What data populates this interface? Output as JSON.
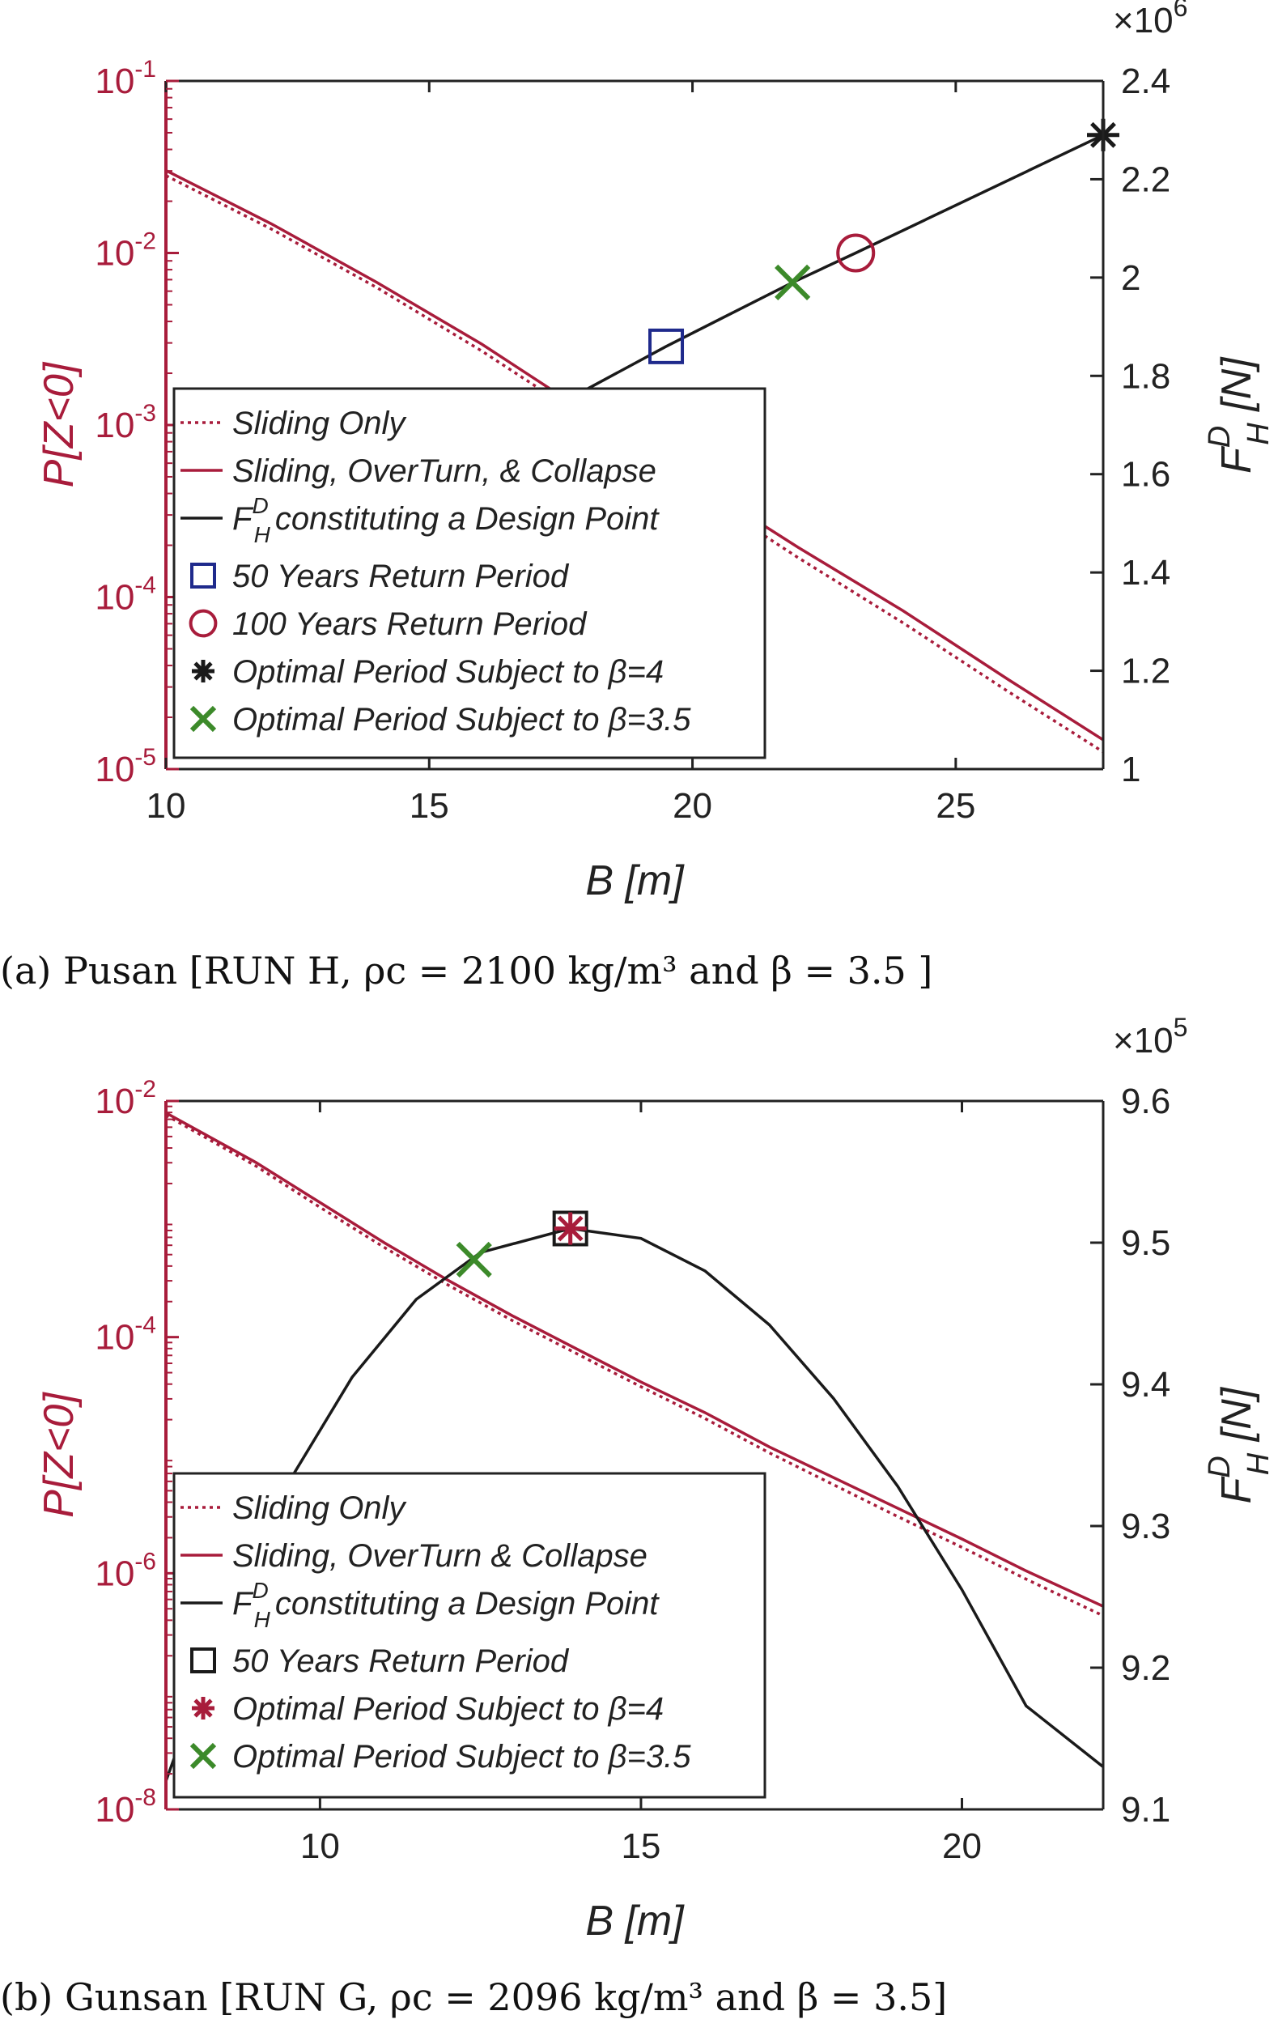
{
  "colors": {
    "red": "#a81c3b",
    "black": "#1a1a1a",
    "blue": "#1f2a8c",
    "green": "#3c8a2a"
  },
  "chart_data": [
    {
      "type": "line",
      "caption": "(a) Pusan [RUN H, ρc = 2100 kg/m³ and β = 3.5 ]",
      "xlabel": "B [m]",
      "ylabel_left": "P[Z<0]",
      "ylabel_right": "F_H^D [N]",
      "right_multiplier": "×10^6",
      "xlim": [
        10,
        27.8
      ],
      "x_ticks": [
        "10",
        "15",
        "20",
        "25"
      ],
      "x_tick_values": [
        10,
        15,
        20,
        25
      ],
      "ylim_left_log10": [
        -5,
        -1
      ],
      "y_ticks_left": [
        {
          "base": "10",
          "exp": "-1"
        },
        {
          "base": "10",
          "exp": "-2"
        },
        {
          "base": "10",
          "exp": "-3"
        },
        {
          "base": "10",
          "exp": "-4"
        },
        {
          "base": "10",
          "exp": "-5"
        }
      ],
      "y_tick_left_exponents": [
        -1,
        -2,
        -3,
        -4,
        -5
      ],
      "ylim_right": [
        1.0,
        2.4
      ],
      "y_ticks_right": [
        "2.4",
        "2.2",
        "2",
        "1.8",
        "1.6",
        "1.4",
        "1.2",
        "1"
      ],
      "y_tick_right_values": [
        2.4,
        2.2,
        2.0,
        1.8,
        1.6,
        1.4,
        1.2,
        1.0
      ],
      "series": [
        {
          "name": "Sliding Only",
          "axis": "left",
          "style": "dotted",
          "color": "#a81c3b",
          "x": [
            10,
            12,
            14,
            16,
            18,
            20,
            22,
            24,
            26,
            27.8
          ],
          "log10_y": [
            -1.55,
            -1.86,
            -2.2,
            -2.57,
            -2.97,
            -3.37,
            -3.77,
            -4.15,
            -4.55,
            -4.9
          ]
        },
        {
          "name": "Sliding, OverTurn, & Collapse",
          "axis": "left",
          "style": "solid",
          "color": "#a81c3b",
          "x": [
            10,
            12,
            14,
            16,
            18,
            20,
            22,
            24,
            26,
            27.8
          ],
          "log10_y": [
            -1.52,
            -1.83,
            -2.17,
            -2.53,
            -2.93,
            -3.32,
            -3.71,
            -4.08,
            -4.48,
            -4.83
          ]
        },
        {
          "name": "constituting a Design Point",
          "axis": "right",
          "style": "solid",
          "color": "#1a1a1a",
          "x": [
            17.6,
            19.5,
            21.9,
            23.1,
            27.8
          ],
          "y": [
            1.75,
            1.86,
            1.99,
            2.05,
            2.29
          ]
        }
      ],
      "markers": [
        {
          "name": "50 Years Return Period",
          "symbol": "square",
          "color": "#1f2a8c",
          "x": 19.5,
          "y": 1.86
        },
        {
          "name": "100 Years Return Period",
          "symbol": "circle",
          "color": "#a81c3b",
          "x": 23.1,
          "y": 2.05
        },
        {
          "name": "Optimal Period Subject to β=4",
          "symbol": "asterisk",
          "color": "#1a1a1a",
          "x": 27.8,
          "y": 2.29
        },
        {
          "name": "Optimal Period Subject to β=3.5",
          "symbol": "cross",
          "color": "#3c8a2a",
          "x": 21.9,
          "y": 1.99
        }
      ],
      "legend": {
        "placement": "bottom-left",
        "entries": [
          {
            "symbol": "dotted",
            "color": "#a81c3b",
            "label": "Sliding Only"
          },
          {
            "symbol": "solid",
            "color": "#a81c3b",
            "label": "Sliding, OverTurn, & Collapse"
          },
          {
            "symbol": "solid",
            "color": "#1a1a1a",
            "label": "constituting a Design Point",
            "math_prefix": true
          },
          {
            "symbol": "square",
            "color": "#1f2a8c",
            "label": "50 Years Return Period"
          },
          {
            "symbol": "circle",
            "color": "#a81c3b",
            "label": "100 Years Return Period"
          },
          {
            "symbol": "asterisk",
            "color": "#1a1a1a",
            "label": "Optimal Period Subject to β=4"
          },
          {
            "symbol": "cross",
            "color": "#3c8a2a",
            "label": "Optimal Period Subject to β=3.5"
          }
        ]
      }
    },
    {
      "type": "line",
      "caption": "(b) Gunsan [RUN G, ρc = 2096 kg/m³ and β = 3.5]",
      "xlabel": "B [m]",
      "ylabel_left": "P[Z<0]",
      "ylabel_right": "F_H^D [N]",
      "right_multiplier": "×10^5",
      "xlim": [
        7.6,
        22.2
      ],
      "x_ticks": [
        "10",
        "15",
        "20"
      ],
      "x_tick_values": [
        10,
        15,
        20
      ],
      "ylim_left_log10": [
        -8,
        -2
      ],
      "y_ticks_left": [
        {
          "base": "10",
          "exp": "-2"
        },
        {
          "base": "10",
          "exp": "-4"
        },
        {
          "base": "10",
          "exp": "-6"
        },
        {
          "base": "10",
          "exp": "-8"
        }
      ],
      "y_tick_left_exponents": [
        -2,
        -4,
        -6,
        -8
      ],
      "ylim_right": [
        9.1,
        9.6
      ],
      "y_ticks_right": [
        "9.6",
        "9.5",
        "9.4",
        "9.3",
        "9.2",
        "9.1"
      ],
      "y_tick_right_values": [
        9.6,
        9.5,
        9.4,
        9.3,
        9.2,
        9.1
      ],
      "series": [
        {
          "name": "Sliding Only",
          "axis": "left",
          "style": "dotted",
          "color": "#a81c3b",
          "x": [
            7.6,
            9,
            10,
            11,
            12,
            13,
            14,
            15,
            16,
            17,
            18,
            19,
            20,
            21,
            22.2
          ],
          "log10_y": [
            -2.12,
            -2.55,
            -2.9,
            -3.24,
            -3.56,
            -3.86,
            -4.14,
            -4.42,
            -4.69,
            -4.98,
            -5.25,
            -5.52,
            -5.78,
            -6.05,
            -6.36
          ]
        },
        {
          "name": "Sliding, OverTurn & Collapse",
          "axis": "left",
          "style": "solid",
          "color": "#a81c3b",
          "x": [
            7.6,
            9,
            10,
            11,
            12,
            13,
            14,
            15,
            16,
            17,
            18,
            19,
            20,
            21,
            22.2
          ],
          "log10_y": [
            -2.1,
            -2.52,
            -2.86,
            -3.2,
            -3.52,
            -3.82,
            -4.1,
            -4.38,
            -4.64,
            -4.93,
            -5.19,
            -5.45,
            -5.71,
            -5.98,
            -6.28
          ]
        },
        {
          "name": "constituting a Design Point",
          "axis": "right",
          "style": "solid",
          "color": "#1a1a1a",
          "x": [
            7.6,
            8.5,
            9.5,
            10.5,
            11.5,
            12.5,
            13.9,
            15,
            16,
            17,
            18,
            19,
            20,
            21,
            22.2
          ],
          "y": [
            9.12,
            9.233,
            9.33,
            9.405,
            9.46,
            9.493,
            9.51,
            9.503,
            9.48,
            9.442,
            9.39,
            9.328,
            9.255,
            9.173,
            9.13
          ]
        }
      ],
      "markers": [
        {
          "name": "50 Years Return Period",
          "symbol": "square",
          "color": "#1a1a1a",
          "x": 13.9,
          "y": 9.51
        },
        {
          "name": "Optimal Period Subject to β=4",
          "symbol": "asterisk",
          "color": "#a81c3b",
          "x": 13.9,
          "y": 9.51
        },
        {
          "name": "Optimal Period Subject to β=3.5",
          "symbol": "cross",
          "color": "#3c8a2a",
          "x": 12.4,
          "y": 9.488
        }
      ],
      "legend": {
        "placement": "bottom-left",
        "entries": [
          {
            "symbol": "dotted",
            "color": "#a81c3b",
            "label": "Sliding Only"
          },
          {
            "symbol": "solid",
            "color": "#a81c3b",
            "label": "Sliding, OverTurn & Collapse"
          },
          {
            "symbol": "solid",
            "color": "#1a1a1a",
            "label": "constituting a Design Point",
            "math_prefix": true
          },
          {
            "symbol": "square",
            "color": "#1a1a1a",
            "label": "50 Years Return Period"
          },
          {
            "symbol": "asterisk",
            "color": "#a81c3b",
            "label": "Optimal Period Subject to β=4"
          },
          {
            "symbol": "cross",
            "color": "#3c8a2a",
            "label": "Optimal Period Subject to β=3.5"
          }
        ]
      }
    }
  ]
}
